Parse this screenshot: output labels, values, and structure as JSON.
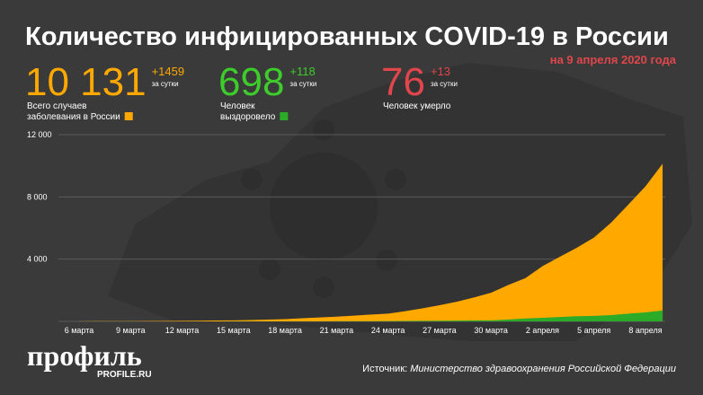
{
  "header": {
    "title": "Количество инфицированных COVID-19 в России",
    "date": "на 9 апреля 2020 года",
    "stats": [
      {
        "value": "10 131",
        "daily": "+1459",
        "daily_note": "за сутки",
        "label": [
          "Всего случаев",
          "заболевания в России"
        ],
        "color": "#ffa800"
      },
      {
        "value": "698",
        "daily": "+118",
        "daily_note": "за сутки",
        "label": [
          "Человек",
          "выздоровело"
        ],
        "color": "#3dcc2c"
      },
      {
        "value": "76",
        "daily": "+13",
        "daily_note": "за сутки",
        "label": [
          "Человек умерло"
        ],
        "color": "#e0464b"
      }
    ]
  },
  "footer": {
    "logo": "профиль",
    "site": "PROFILE.RU",
    "source_prefix": "Источник:",
    "source": "Министерство здравоохранения Российской Федерации"
  },
  "chart_data": {
    "type": "area",
    "categories": [
      "6 марта",
      null,
      null,
      "9 марта",
      null,
      null,
      "12 марта",
      null,
      null,
      "15 марта",
      null,
      null,
      "18 марта",
      null,
      null,
      "21 марта",
      null,
      null,
      "24 марта",
      null,
      null,
      "27 марта",
      null,
      null,
      "30 марта",
      null,
      null,
      "2 апреля",
      null,
      null,
      "5 апреля",
      null,
      null,
      "8 апреля",
      null
    ],
    "series": [
      {
        "color": "#ffa800",
        "values": [
          10,
          14,
          17,
          17,
          20,
          28,
          34,
          45,
          59,
          63,
          90,
          114,
          147,
          199,
          253,
          306,
          367,
          438,
          495,
          658,
          840,
          1036,
          1264,
          1534,
          1836,
          2337,
          2777,
          3548,
          4149,
          4731,
          5389,
          6343,
          7497,
          8672,
          10131
        ]
      },
      {
        "color": "#2cab28",
        "values": [
          0,
          0,
          0,
          3,
          3,
          3,
          3,
          3,
          3,
          5,
          5,
          5,
          5,
          8,
          9,
          12,
          16,
          17,
          21,
          29,
          38,
          45,
          49,
          64,
          66,
          121,
          190,
          233,
          281,
          333,
          355,
          406,
          494,
          580,
          698
        ]
      }
    ],
    "ylim": [
      0,
      12000
    ],
    "yticks": [
      {
        "value": 4000,
        "label": "4 000"
      },
      {
        "value": 8000,
        "label": "8 000"
      },
      {
        "value": 12000,
        "label": "12 000"
      }
    ],
    "grid": true
  }
}
